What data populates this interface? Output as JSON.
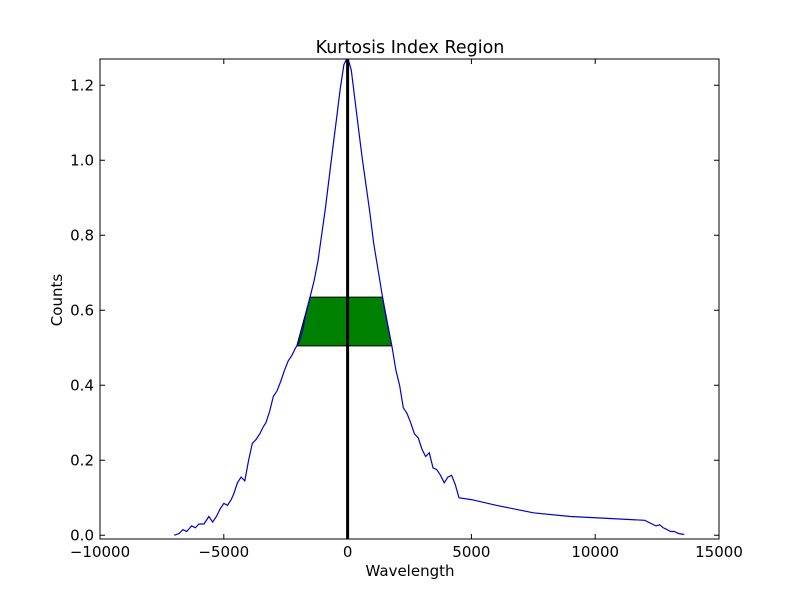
{
  "chart_data": {
    "type": "line",
    "title": "Kurtosis Index Region",
    "xlabel": "Wavelength",
    "ylabel": "Counts",
    "xlim": [
      -10000,
      15000
    ],
    "ylim": [
      -0.01,
      1.27
    ],
    "xticks": [
      -10000,
      -5000,
      0,
      5000,
      10000,
      15000
    ],
    "xtick_labels": [
      "−10000",
      "−5000",
      "0",
      "5000",
      "10000",
      "15000"
    ],
    "yticks": [
      0.0,
      0.2,
      0.4,
      0.6,
      0.8,
      1.0,
      1.2
    ],
    "ytick_labels": [
      "0.0",
      "0.2",
      "0.4",
      "0.6",
      "0.8",
      "1.0",
      "1.2"
    ],
    "grid": false,
    "legend": "none",
    "series": [
      {
        "color": "#0000cc",
        "x": [
          -7000,
          -6800,
          -6650,
          -6500,
          -6300,
          -6150,
          -6000,
          -5800,
          -5600,
          -5450,
          -5300,
          -5150,
          -5000,
          -4850,
          -4700,
          -4600,
          -4450,
          -4300,
          -4150,
          -4000,
          -3850,
          -3700,
          -3550,
          -3400,
          -3300,
          -3150,
          -3000,
          -2850,
          -2700,
          -2550,
          -2400,
          -2250,
          -2100,
          -1950,
          -1800,
          -1650,
          -1500,
          -1350,
          -1200,
          -1050,
          -900,
          -750,
          -600,
          -450,
          -300,
          -150,
          0,
          150,
          300,
          450,
          600,
          750,
          900,
          1050,
          1200,
          1350,
          1500,
          1650,
          1800,
          1950,
          2100,
          2250,
          2400,
          2550,
          2700,
          2850,
          3000,
          3150,
          3300,
          3450,
          3600,
          3750,
          3900,
          4050,
          4200,
          4350,
          4500,
          5000,
          6000,
          7500,
          9000,
          10500,
          12000,
          12300,
          12450,
          12600,
          12750,
          12900,
          13050,
          13200,
          13350,
          13500,
          13600
        ],
        "y": [
          0.0,
          0.005,
          0.015,
          0.01,
          0.025,
          0.02,
          0.03,
          0.03,
          0.05,
          0.035,
          0.05,
          0.07,
          0.085,
          0.08,
          0.095,
          0.11,
          0.14,
          0.155,
          0.145,
          0.2,
          0.245,
          0.255,
          0.27,
          0.29,
          0.3,
          0.33,
          0.37,
          0.385,
          0.41,
          0.44,
          0.465,
          0.48,
          0.5,
          0.515,
          0.55,
          0.6,
          0.64,
          0.68,
          0.73,
          0.8,
          0.87,
          0.95,
          1.03,
          1.11,
          1.19,
          1.255,
          1.275,
          1.24,
          1.16,
          1.08,
          1.0,
          0.93,
          0.86,
          0.78,
          0.72,
          0.66,
          0.6,
          0.55,
          0.5,
          0.44,
          0.4,
          0.34,
          0.325,
          0.3,
          0.27,
          0.26,
          0.23,
          0.21,
          0.22,
          0.18,
          0.175,
          0.16,
          0.14,
          0.155,
          0.16,
          0.135,
          0.1,
          0.095,
          0.08,
          0.06,
          0.05,
          0.045,
          0.04,
          0.03,
          0.025,
          0.028,
          0.02,
          0.015,
          0.01,
          0.01,
          0.005,
          0.003,
          0.002
        ]
      }
    ],
    "shaded_region": {
      "x": [
        -1350,
        1750
      ],
      "y": [
        0.505,
        0.635
      ],
      "color": "#008000"
    },
    "vertical_line": {
      "x": 0,
      "color": "#000000"
    }
  }
}
